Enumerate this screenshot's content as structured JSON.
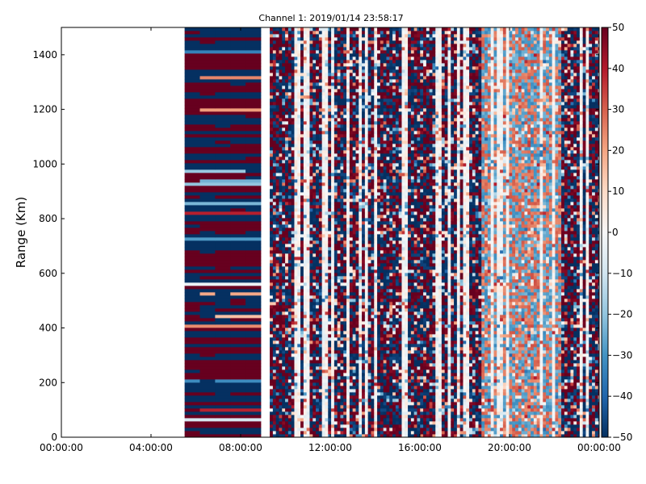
{
  "chart_data": {
    "type": "heatmap",
    "title": "Channel 1: 2019/01/14 23:58:17",
    "xlabel": "",
    "ylabel": "Range (Km)",
    "x_ticks": [
      "00:00:00",
      "04:00:00",
      "08:00:00",
      "12:00:00",
      "16:00:00",
      "20:00:00",
      "00:00:00"
    ],
    "x_range_hours": [
      0,
      24
    ],
    "y_ticks": [
      "0",
      "200",
      "400",
      "600",
      "800",
      "1000",
      "1200",
      "1400"
    ],
    "ylim": [
      0,
      1500
    ],
    "colorbar": {
      "colormap": "RdBu_r",
      "range": [
        -50,
        50
      ],
      "ticks": [
        "50",
        "40",
        "30",
        "20",
        "10",
        "0",
        "−10",
        "−20",
        "−30",
        "−40",
        "−50"
      ]
    },
    "data_segments": [
      {
        "start_hour": 5.5,
        "end_hour": 8.9,
        "pattern": "horizontal banded, mostly saturated red/blue"
      },
      {
        "start_hour": 9.3,
        "end_hour": 24.0,
        "pattern": "vertical streaked noise, lighter values toward 19–22 h"
      }
    ],
    "empty_ranges_hours": [
      [
        0,
        5.5
      ],
      [
        8.9,
        9.3
      ]
    ],
    "colors": {
      "dark_red": "#67001f",
      "dark_blue": "#053061",
      "white": "#f7f7f7"
    }
  }
}
